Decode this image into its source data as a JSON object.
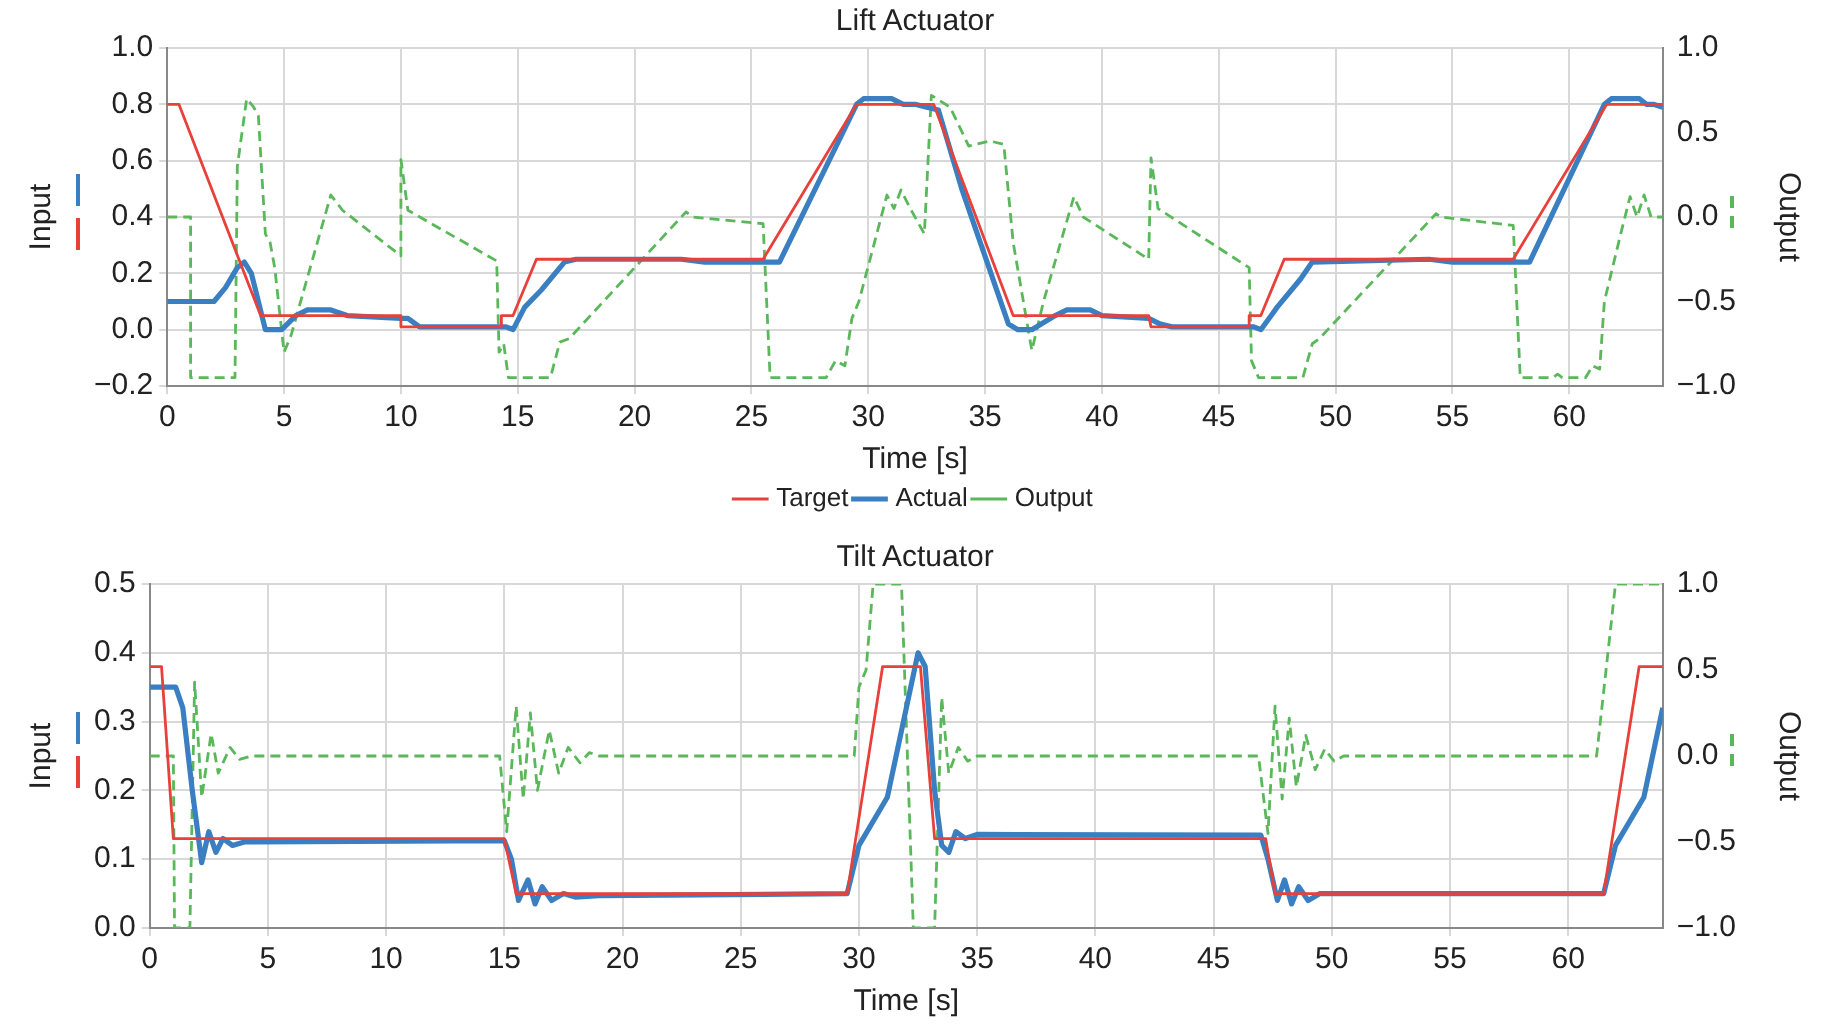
{
  "chart_data": [
    {
      "type": "line",
      "title": "Lift Actuator",
      "xlabel": "Time [s]",
      "ylabel": "Input",
      "y2label": "Output",
      "xlim": [
        0,
        64
      ],
      "xticks": [
        0,
        5,
        10,
        15,
        20,
        25,
        30,
        35,
        40,
        45,
        50,
        55,
        60
      ],
      "ylim": [
        -0.2,
        1
      ],
      "yticks": [
        {
          "value": -0.2,
          "label": "−0.2"
        },
        {
          "value": 0,
          "label": "0.0"
        },
        0.2,
        0.4,
        0.6,
        0.8,
        {
          "value": 1,
          "label": "1.0"
        }
      ],
      "y2lim": [
        -1,
        1
      ],
      "y2ticks": [
        {
          "value": -1,
          "label": "−1.0"
        },
        {
          "value": -0.5,
          "label": "−0.5"
        },
        {
          "value": 0,
          "label": "0.0"
        },
        0.5,
        {
          "value": 1,
          "label": "1.0"
        }
      ],
      "grid": true,
      "legend": "bottom",
      "marker": "none",
      "series": [
        {
          "name": "Target",
          "color": "#e8403a",
          "axis": "y",
          "line_style": "solid",
          "x": [
            0,
            0.5,
            4,
            10,
            10,
            14.3,
            14.3,
            14.8,
            15.8,
            25.5,
            29.5,
            32.8,
            36.2,
            42,
            42.1,
            46.3,
            46.3,
            46.8,
            47.8,
            57.6,
            61.6,
            64
          ],
          "values": [
            0.8,
            0.8,
            0.05,
            0.05,
            0.01,
            0.01,
            0.05,
            0.05,
            0.25,
            0.25,
            0.8,
            0.8,
            0.05,
            0.05,
            0.01,
            0.01,
            0.05,
            0.05,
            0.25,
            0.25,
            0.8,
            0.8
          ]
        },
        {
          "name": "Actual",
          "color": "#3a7fc1",
          "axis": "y",
          "line_style": "solid",
          "x": [
            0,
            2,
            2.5,
            3,
            3.3,
            3.6,
            4.2,
            4.9,
            5.5,
            6,
            7,
            7.7,
            10,
            10.3,
            10.8,
            14.5,
            14.8,
            15.3,
            16,
            17,
            17.5,
            22,
            23,
            26.2,
            29.5,
            29.8,
            31,
            31.5,
            32,
            32.5,
            33,
            34,
            36,
            36.4,
            37,
            38,
            38.5,
            39.5,
            40,
            42,
            42.5,
            43,
            46.5,
            46.8,
            47.5,
            48.5,
            49,
            54,
            55,
            58.3,
            61.5,
            61.8,
            63,
            63.3,
            63.6,
            64
          ],
          "values": [
            0.1,
            0.1,
            0.15,
            0.22,
            0.24,
            0.2,
            0,
            0,
            0.05,
            0.07,
            0.07,
            0.05,
            0.04,
            0.04,
            0.01,
            0.01,
            0,
            0.08,
            0.14,
            0.24,
            0.25,
            0.25,
            0.24,
            0.24,
            0.8,
            0.82,
            0.82,
            0.8,
            0.8,
            0.79,
            0.78,
            0.5,
            0.02,
            0,
            0,
            0.05,
            0.07,
            0.07,
            0.05,
            0.04,
            0.02,
            0.01,
            0.01,
            0,
            0.08,
            0.18,
            0.24,
            0.25,
            0.24,
            0.24,
            0.8,
            0.82,
            0.82,
            0.8,
            0.8,
            0.79
          ]
        },
        {
          "name": "Output",
          "color": "#5ab85a",
          "axis": "y2",
          "line_style": "dashed",
          "x": [
            0,
            1,
            1,
            2.9,
            3,
            3.4,
            3.7,
            3.9,
            4.2,
            4.4,
            4.6,
            5,
            5.3,
            7,
            7.5,
            10,
            10,
            10.3,
            14.1,
            14.2,
            14.4,
            14.6,
            16.4,
            16.8,
            17.2,
            22.2,
            22.5,
            25.5,
            25.8,
            28.2,
            28.6,
            29,
            29.3,
            29.6,
            30.8,
            31.1,
            31.4,
            31.8,
            32.4,
            32.7,
            33.5,
            34.3,
            35.2,
            35.8,
            36.2,
            37,
            37.5,
            38.8,
            39.2,
            42,
            42.1,
            42.4,
            46.3,
            46.4,
            46.7,
            48.6,
            49,
            49.3,
            54.3,
            54.5,
            57.6,
            57.9,
            59.3,
            59.5,
            59.7,
            60.7,
            61,
            61.3,
            61.5,
            62.2,
            62.6,
            62.9,
            63.2,
            63.5,
            64
          ],
          "values": [
            0,
            0,
            -0.95,
            -0.95,
            0.3,
            0.7,
            0.65,
            0.6,
            -0.1,
            -0.15,
            -0.3,
            -0.8,
            -0.7,
            0.13,
            0.04,
            -0.23,
            0.34,
            0.04,
            -0.26,
            -0.8,
            -0.75,
            -0.95,
            -0.95,
            -0.74,
            -0.72,
            0.03,
            0,
            -0.04,
            -0.95,
            -0.95,
            -0.85,
            -0.88,
            -0.6,
            -0.5,
            0.13,
            0.05,
            0.16,
            0.05,
            -0.1,
            0.72,
            0.65,
            0.42,
            0.45,
            0.43,
            -0.15,
            -0.79,
            -0.5,
            0.12,
            0,
            -0.25,
            0.35,
            0.05,
            -0.3,
            -0.85,
            -0.95,
            -0.95,
            -0.75,
            -0.72,
            0.02,
            0,
            -0.05,
            -0.95,
            -0.95,
            -0.93,
            -0.95,
            -0.95,
            -0.88,
            -0.9,
            -0.5,
            -0.1,
            0.12,
            0,
            0.13,
            0,
            0
          ]
        }
      ]
    },
    {
      "type": "line",
      "title": "Tilt Actuator",
      "xlabel": "Time [s]",
      "ylabel": "Input",
      "y2label": "Output",
      "xlim": [
        0,
        64
      ],
      "xticks": [
        0,
        5,
        10,
        15,
        20,
        25,
        30,
        35,
        40,
        45,
        50,
        55,
        60
      ],
      "ylim": [
        0,
        0.5
      ],
      "yticks": [
        {
          "value": 0,
          "label": "0.0"
        },
        0.1,
        0.2,
        0.3,
        0.4,
        0.5
      ],
      "y2lim": [
        -1,
        1
      ],
      "y2ticks": [
        {
          "value": -1,
          "label": "−1.0"
        },
        {
          "value": -0.5,
          "label": "−0.5"
        },
        {
          "value": 0,
          "label": "0.0"
        },
        0.5,
        {
          "value": 1,
          "label": "1.0"
        }
      ],
      "grid": true,
      "marker": "none",
      "series": [
        {
          "color": "#e8403a",
          "axis": "y",
          "line_style": "solid",
          "x": [
            0,
            0.5,
            1,
            15,
            15.5,
            29.5,
            31,
            32.6,
            33.2,
            47.2,
            47.6,
            61.5,
            63,
            64
          ],
          "values": [
            0.38,
            0.38,
            0.13,
            0.13,
            0.05,
            0.05,
            0.38,
            0.38,
            0.13,
            0.13,
            0.05,
            0.05,
            0.38,
            0.38
          ]
        },
        {
          "color": "#3a7fc1",
          "axis": "y",
          "line_style": "solid",
          "x": [
            0,
            1.1,
            1.4,
            1.8,
            2.2,
            2.5,
            2.8,
            3.1,
            3.5,
            4,
            15,
            15.3,
            15.6,
            16,
            16.3,
            16.6,
            17,
            17.5,
            18,
            19,
            29.5,
            30,
            31.2,
            32.5,
            32.8,
            33.2,
            33.5,
            33.8,
            34.1,
            34.5,
            35,
            47,
            47.3,
            47.7,
            48,
            48.3,
            48.6,
            49,
            49.5,
            50,
            61.5,
            62,
            63.2,
            64
          ],
          "values": [
            0.35,
            0.35,
            0.32,
            0.2,
            0.095,
            0.14,
            0.11,
            0.13,
            0.12,
            0.125,
            0.127,
            0.1,
            0.04,
            0.07,
            0.035,
            0.06,
            0.04,
            0.05,
            0.045,
            0.047,
            0.05,
            0.12,
            0.19,
            0.4,
            0.38,
            0.2,
            0.12,
            0.11,
            0.14,
            0.13,
            0.136,
            0.135,
            0.1,
            0.04,
            0.07,
            0.035,
            0.06,
            0.04,
            0.05,
            0.05,
            0.05,
            0.12,
            0.19,
            0.32
          ]
        },
        {
          "color": "#5ab85a",
          "axis": "y2",
          "line_style": "dashed",
          "x": [
            0,
            1,
            1.05,
            1.7,
            1.9,
            2.2,
            2.6,
            2.9,
            3.4,
            3.8,
            4.3,
            14.8,
            15.1,
            15.5,
            15.8,
            16.1,
            16.4,
            16.9,
            17.3,
            17.7,
            18.2,
            18.6,
            19,
            29.8,
            30,
            30.3,
            30.6,
            31.8,
            32.3,
            33.2,
            33.5,
            33.8,
            34.2,
            34.6,
            35,
            46.9,
            47.3,
            47.6,
            47.9,
            48.2,
            48.5,
            48.9,
            49.3,
            49.7,
            50.1,
            50.5,
            61.2,
            61.6,
            62,
            64
          ],
          "values": [
            0,
            0,
            -1,
            -1,
            0.43,
            -0.24,
            0.13,
            -0.1,
            0.05,
            -0.02,
            0,
            0,
            -0.44,
            0.29,
            -0.25,
            0.25,
            -0.2,
            0.15,
            -0.1,
            0.05,
            -0.04,
            0.02,
            0,
            0,
            0.4,
            0.5,
            1,
            1,
            -1,
            -1,
            0.34,
            -0.1,
            0.05,
            -0.03,
            0,
            0,
            -0.45,
            0.29,
            -0.25,
            0.22,
            -0.18,
            0.12,
            -0.08,
            0.04,
            -0.03,
            0,
            0,
            0.5,
            1,
            1
          ]
        }
      ]
    }
  ]
}
